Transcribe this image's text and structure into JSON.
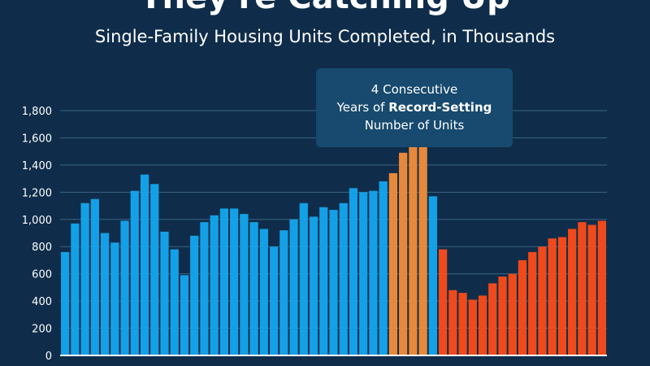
{
  "header": {
    "title": "They're Catching Up",
    "subtitle": "Single-Family Housing Units Completed, in Thousands"
  },
  "callout": {
    "line1": "4 Consecutive",
    "line2_pre": "Years of ",
    "line2_bold": "Record-Setting",
    "line3": "Number of Units"
  },
  "colors": {
    "background": "#0f2d4a",
    "blue": "#14a0e6",
    "orange_highlight": "#e8893a",
    "red_recent": "#ef4a1c",
    "gridline": "#3b6385",
    "callout_bg": "#174a6e"
  },
  "chart_data": {
    "type": "bar",
    "title": "Single-Family Housing Units Completed, in Thousands",
    "xlabel": "",
    "ylabel": "",
    "ylim": [
      0,
      1800
    ],
    "yticks": [
      0,
      200,
      400,
      600,
      800,
      1000,
      1200,
      1400,
      1600,
      1800
    ],
    "ytick_labels": [
      "0",
      "200",
      "400",
      "600",
      "800",
      "1,000",
      "1,200",
      "1,400",
      "1,600",
      "1,800"
    ],
    "grid": true,
    "values": [
      760,
      970,
      1120,
      1150,
      900,
      830,
      990,
      1210,
      1330,
      1260,
      910,
      780,
      590,
      880,
      980,
      1030,
      1080,
      1080,
      1040,
      980,
      930,
      800,
      920,
      1000,
      1120,
      1020,
      1090,
      1070,
      1120,
      1230,
      1200,
      1210,
      1280,
      1340,
      1490,
      1590,
      1610,
      1170,
      780,
      480,
      460,
      410,
      440,
      530,
      580,
      600,
      700,
      760,
      800,
      860,
      870,
      930,
      980,
      960,
      990
    ],
    "bar_colors": [
      "blue",
      "blue",
      "blue",
      "blue",
      "blue",
      "blue",
      "blue",
      "blue",
      "blue",
      "blue",
      "blue",
      "blue",
      "blue",
      "blue",
      "blue",
      "blue",
      "blue",
      "blue",
      "blue",
      "blue",
      "blue",
      "blue",
      "blue",
      "blue",
      "blue",
      "blue",
      "blue",
      "blue",
      "blue",
      "blue",
      "blue",
      "blue",
      "blue",
      "orange",
      "orange",
      "orange",
      "orange",
      "blue",
      "red",
      "red",
      "red",
      "red",
      "red",
      "red",
      "red",
      "red",
      "red",
      "red",
      "red",
      "red",
      "red",
      "red",
      "red",
      "red",
      "red"
    ]
  }
}
